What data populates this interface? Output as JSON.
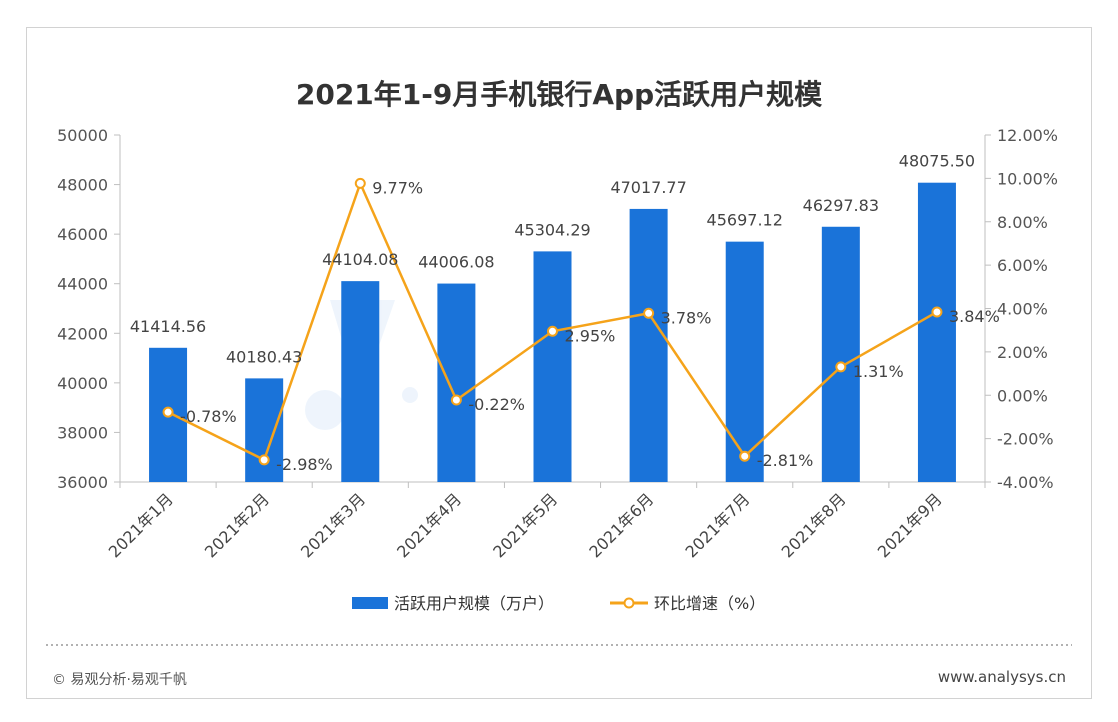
{
  "chart_data": {
    "type": "bar",
    "title": "2021年1-9月手机银行App活跃用户规模",
    "categories": [
      "2021年1月",
      "2021年2月",
      "2021年3月",
      "2021年4月",
      "2021年5月",
      "2021年6月",
      "2021年7月",
      "2021年8月",
      "2021年9月"
    ],
    "series": [
      {
        "name": "活跃用户规模（万户）",
        "type": "bar",
        "axis": "left",
        "values": [
          41414.56,
          40180.43,
          44104.08,
          44006.08,
          45304.29,
          47017.77,
          45697.12,
          46297.83,
          48075.5
        ],
        "labels": [
          "41414.56",
          "40180.43",
          "44104.08",
          "44006.08",
          "45304.29",
          "47017.77",
          "45697.12",
          "46297.83",
          "48075.50"
        ]
      },
      {
        "name": "环比增速（%）",
        "type": "line",
        "axis": "right",
        "values": [
          -0.78,
          -2.98,
          9.77,
          -0.22,
          2.95,
          3.78,
          -2.81,
          1.31,
          3.84
        ],
        "labels": [
          "-0.78%",
          "-2.98%",
          "9.77%",
          "-0.22%",
          "2.95%",
          "3.78%",
          "-2.81%",
          "1.31%",
          "3.84%"
        ]
      }
    ],
    "y_left": {
      "range": [
        36000,
        50000
      ],
      "ticks": [
        "36000",
        "38000",
        "40000",
        "42000",
        "44000",
        "46000",
        "48000",
        "50000"
      ]
    },
    "y_right": {
      "range": [
        -4,
        12
      ],
      "ticks": [
        "-4.00%",
        "-2.00%",
        "0.00%",
        "2.00%",
        "4.00%",
        "6.00%",
        "8.00%",
        "10.00%",
        "12.00%"
      ]
    },
    "grid": false,
    "legend_position": "bottom",
    "colors": {
      "bar": "#1a73d9",
      "line": "#f5a31a"
    }
  },
  "footer": {
    "left": "© 易观分析·易观千帆",
    "right": "www.analysys.cn"
  }
}
